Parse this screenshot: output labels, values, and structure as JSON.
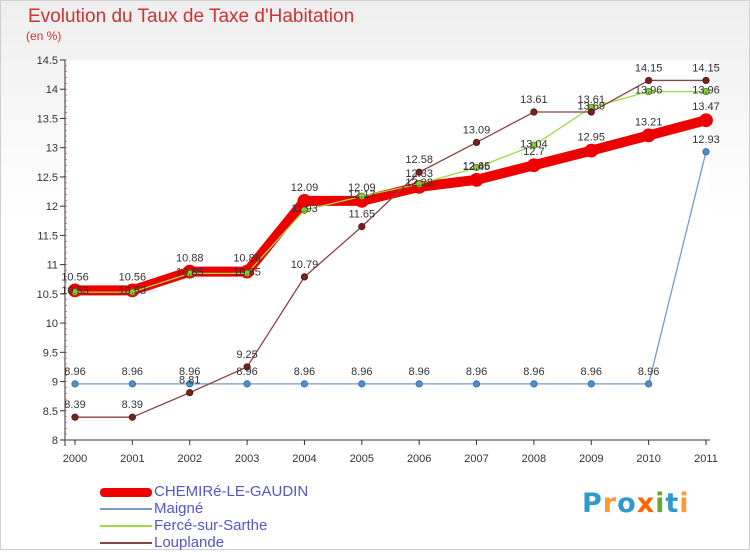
{
  "header": {
    "title": "Evolution du Taux de Taxe d'Habitation",
    "unit": "(en %)"
  },
  "logo": {
    "text": "Proxiti",
    "colors": [
      "#3399cc",
      "#ff9933",
      "#3399cc",
      "#ff6600",
      "#66aa33",
      "#3399cc",
      "#ff9933"
    ]
  },
  "chart_data": {
    "type": "line",
    "x": [
      "2000",
      "2001",
      "2002",
      "2003",
      "2004",
      "2005",
      "2006",
      "2007",
      "2008",
      "2009",
      "2010",
      "2011"
    ],
    "ylim": [
      8,
      14.5
    ],
    "yticks": [
      "8",
      "8.5",
      "9",
      "9.5",
      "10",
      "10.5",
      "11",
      "11.5",
      "12",
      "12.5",
      "13",
      "13.5",
      "14",
      "14.5"
    ],
    "grid": false,
    "legend_position": "bottom-left",
    "series": [
      {
        "name": "CHEMIRé-LE-GAUDIN",
        "color": "#ee0000",
        "values": [
          10.56,
          10.56,
          10.88,
          10.88,
          12.09,
          12.09,
          12.33,
          12.45,
          12.7,
          12.95,
          13.21,
          13.47
        ]
      },
      {
        "name": "Maigné",
        "color": "#7799cc",
        "values": [
          8.96,
          8.96,
          8.96,
          8.96,
          8.96,
          8.96,
          8.96,
          8.96,
          8.96,
          8.96,
          8.96,
          12.93
        ]
      },
      {
        "name": "Fercé-sur-Sarthe",
        "color": "#99dd44",
        "values": [
          10.53,
          10.53,
          10.85,
          10.85,
          11.93,
          12.17,
          12.38,
          12.66,
          13.04,
          13.69,
          13.96,
          13.96
        ]
      },
      {
        "name": "Louplande",
        "color": "#884444",
        "values": [
          8.39,
          8.39,
          8.81,
          9.25,
          10.79,
          11.65,
          12.58,
          13.09,
          13.61,
          13.61,
          14.15,
          14.15
        ]
      }
    ],
    "point_labels": [
      [
        "10.56",
        "10.56",
        "10.88",
        "10.88",
        "12.09",
        "12.09",
        "12.33",
        "12.45",
        "12.7",
        "12.95",
        "13.21",
        "13.47"
      ],
      [
        "8.96",
        "8.96",
        "8.96",
        "8.96",
        "8.96",
        "8.96",
        "8.96",
        "8.96",
        "8.96",
        "8.96",
        "8.96",
        "12.93"
      ],
      [
        "10.53",
        "10.53",
        "10.85",
        "10.85",
        "11.93",
        "12.17",
        "12.38",
        "12.66",
        "13.04",
        "13.69",
        "13.96",
        "13.96"
      ],
      [
        "8.39",
        "8.39",
        "8.81",
        "9.25",
        "10.79",
        "11.65",
        "12.58",
        "13.09",
        "13.61",
        "13.61",
        "14.15",
        "14.15"
      ]
    ]
  }
}
